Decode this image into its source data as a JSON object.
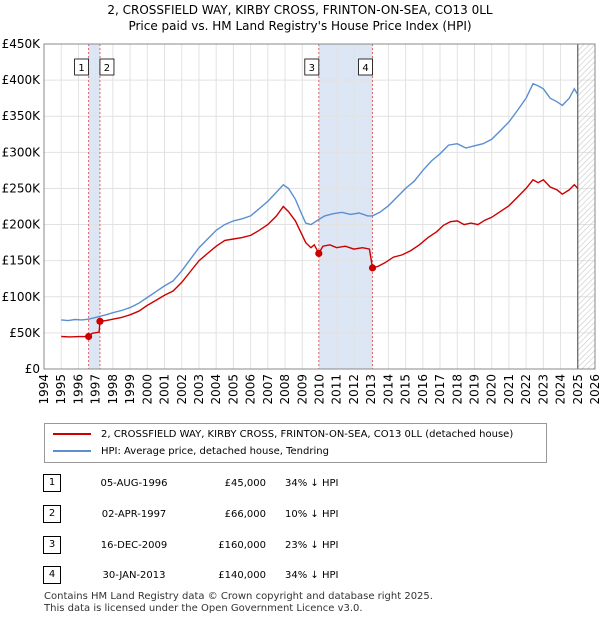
{
  "header": {
    "line1": "2, CROSSFIELD WAY, KIRBY CROSS, FRINTON-ON-SEA, CO13 0LL",
    "line2": "Price paid vs. HM Land Registry's House Price Index (HPI)"
  },
  "chart_data": {
    "type": "line",
    "title": "2, CROSSFIELD WAY, KIRBY CROSS, FRINTON-ON-SEA, CO13 0LL - Price paid vs. HM Land Registry's House Price Index (HPI)",
    "xlim": [
      1994,
      2026
    ],
    "ylim": [
      0,
      450000
    ],
    "x_ticks": [
      "1994",
      "1995",
      "1996",
      "1997",
      "1998",
      "1999",
      "2000",
      "2001",
      "2002",
      "2003",
      "2004",
      "2005",
      "2006",
      "2007",
      "2008",
      "2009",
      "2010",
      "2011",
      "2012",
      "2013",
      "2014",
      "2015",
      "2016",
      "2017",
      "2018",
      "2019",
      "2020",
      "2021",
      "2022",
      "2023",
      "2024",
      "2025",
      "2026"
    ],
    "y_ticks": [
      {
        "value": 0,
        "label": "£0"
      },
      {
        "value": 50000,
        "label": "£50K"
      },
      {
        "value": 100000,
        "label": "£100K"
      },
      {
        "value": 150000,
        "label": "£150K"
      },
      {
        "value": 200000,
        "label": "£200K"
      },
      {
        "value": 250000,
        "label": "£250K"
      },
      {
        "value": 300000,
        "label": "£300K"
      },
      {
        "value": 350000,
        "label": "£350K"
      },
      {
        "value": 400000,
        "label": "£400K"
      },
      {
        "value": 450000,
        "label": "£450K"
      }
    ],
    "data_end_year": 2025.0,
    "series": [
      {
        "name": "2, CROSSFIELD WAY, KIRBY CROSS, FRINTON-ON-SEA, CO13 0LL (detached house)",
        "color": "#cc0000",
        "points": [
          [
            1995.0,
            45000
          ],
          [
            1995.5,
            44500
          ],
          [
            1996.0,
            44800
          ],
          [
            1996.59,
            45000
          ],
          [
            1996.8,
            49500
          ],
          [
            1997.2,
            51000
          ],
          [
            1997.25,
            66000
          ],
          [
            1997.6,
            67000
          ],
          [
            1998.0,
            69000
          ],
          [
            1998.5,
            71500
          ],
          [
            1999.0,
            75000
          ],
          [
            1999.5,
            80000
          ],
          [
            2000.0,
            88000
          ],
          [
            2000.5,
            95000
          ],
          [
            2001.0,
            102000
          ],
          [
            2001.5,
            108000
          ],
          [
            2002.0,
            120000
          ],
          [
            2002.5,
            135000
          ],
          [
            2003.0,
            150000
          ],
          [
            2003.5,
            160000
          ],
          [
            2004.0,
            170000
          ],
          [
            2004.5,
            178000
          ],
          [
            2005.0,
            180000
          ],
          [
            2005.5,
            182000
          ],
          [
            2006.0,
            185000
          ],
          [
            2006.5,
            192000
          ],
          [
            2007.0,
            200000
          ],
          [
            2007.5,
            212000
          ],
          [
            2007.9,
            225000
          ],
          [
            2008.2,
            218000
          ],
          [
            2008.6,
            205000
          ],
          [
            2008.9,
            190000
          ],
          [
            2009.2,
            175000
          ],
          [
            2009.5,
            168000
          ],
          [
            2009.7,
            172000
          ],
          [
            2009.96,
            160000
          ],
          [
            2010.2,
            170000
          ],
          [
            2010.6,
            172000
          ],
          [
            2011.0,
            168000
          ],
          [
            2011.5,
            170000
          ],
          [
            2012.0,
            166000
          ],
          [
            2012.5,
            168000
          ],
          [
            2012.9,
            166000
          ],
          [
            2013.08,
            140000
          ],
          [
            2013.4,
            142000
          ],
          [
            2013.8,
            147000
          ],
          [
            2014.3,
            155000
          ],
          [
            2014.8,
            158000
          ],
          [
            2015.3,
            164000
          ],
          [
            2015.8,
            172000
          ],
          [
            2016.3,
            182000
          ],
          [
            2016.8,
            190000
          ],
          [
            2017.2,
            199000
          ],
          [
            2017.6,
            204000
          ],
          [
            2018.0,
            205000
          ],
          [
            2018.4,
            200000
          ],
          [
            2018.8,
            202000
          ],
          [
            2019.2,
            200000
          ],
          [
            2019.6,
            206000
          ],
          [
            2020.0,
            210000
          ],
          [
            2020.5,
            218000
          ],
          [
            2021.0,
            226000
          ],
          [
            2021.5,
            238000
          ],
          [
            2022.0,
            250000
          ],
          [
            2022.4,
            262000
          ],
          [
            2022.7,
            258000
          ],
          [
            2023.0,
            262000
          ],
          [
            2023.4,
            252000
          ],
          [
            2023.8,
            248000
          ],
          [
            2024.1,
            242000
          ],
          [
            2024.5,
            248000
          ],
          [
            2024.8,
            255000
          ],
          [
            2025.0,
            250000
          ]
        ]
      },
      {
        "name": "HPI: Average price, detached house, Tendring",
        "color": "#5b8fd0",
        "points": [
          [
            1995.0,
            68000
          ],
          [
            1995.4,
            67000
          ],
          [
            1995.8,
            68500
          ],
          [
            1996.2,
            68000
          ],
          [
            1996.59,
            69000
          ],
          [
            1997.0,
            71500
          ],
          [
            1997.25,
            73000
          ],
          [
            1997.6,
            75000
          ],
          [
            1998.0,
            78000
          ],
          [
            1998.5,
            81000
          ],
          [
            1999.0,
            85000
          ],
          [
            1999.5,
            91000
          ],
          [
            2000.0,
            99000
          ],
          [
            2000.5,
            107000
          ],
          [
            2001.0,
            115000
          ],
          [
            2001.5,
            122000
          ],
          [
            2002.0,
            136000
          ],
          [
            2002.5,
            152000
          ],
          [
            2003.0,
            168000
          ],
          [
            2003.5,
            180000
          ],
          [
            2004.0,
            192000
          ],
          [
            2004.5,
            200000
          ],
          [
            2005.0,
            205000
          ],
          [
            2005.5,
            208000
          ],
          [
            2006.0,
            212000
          ],
          [
            2006.5,
            222000
          ],
          [
            2007.0,
            232000
          ],
          [
            2007.5,
            245000
          ],
          [
            2007.9,
            255000
          ],
          [
            2008.2,
            250000
          ],
          [
            2008.6,
            235000
          ],
          [
            2008.9,
            218000
          ],
          [
            2009.2,
            202000
          ],
          [
            2009.5,
            200000
          ],
          [
            2009.96,
            207000
          ],
          [
            2010.3,
            212000
          ],
          [
            2010.8,
            215000
          ],
          [
            2011.3,
            217000
          ],
          [
            2011.8,
            214000
          ],
          [
            2012.3,
            216000
          ],
          [
            2012.8,
            212000
          ],
          [
            2013.08,
            212000
          ],
          [
            2013.5,
            217000
          ],
          [
            2014.0,
            226000
          ],
          [
            2014.5,
            238000
          ],
          [
            2015.0,
            250000
          ],
          [
            2015.5,
            260000
          ],
          [
            2016.0,
            275000
          ],
          [
            2016.5,
            288000
          ],
          [
            2017.0,
            298000
          ],
          [
            2017.5,
            310000
          ],
          [
            2018.0,
            312000
          ],
          [
            2018.5,
            306000
          ],
          [
            2019.0,
            309000
          ],
          [
            2019.5,
            312000
          ],
          [
            2020.0,
            318000
          ],
          [
            2020.5,
            330000
          ],
          [
            2021.0,
            342000
          ],
          [
            2021.5,
            358000
          ],
          [
            2022.0,
            375000
          ],
          [
            2022.4,
            395000
          ],
          [
            2022.7,
            392000
          ],
          [
            2023.0,
            388000
          ],
          [
            2023.4,
            375000
          ],
          [
            2023.8,
            370000
          ],
          [
            2024.1,
            365000
          ],
          [
            2024.5,
            375000
          ],
          [
            2024.8,
            388000
          ],
          [
            2025.0,
            380000
          ]
        ]
      }
    ],
    "sales": [
      {
        "id": "1",
        "x": 1996.59,
        "price": 45000
      },
      {
        "id": "2",
        "x": 1997.25,
        "price": 66000
      },
      {
        "id": "3",
        "x": 2009.96,
        "price": 160000
      },
      {
        "id": "4",
        "x": 2013.08,
        "price": 140000
      }
    ]
  },
  "legend": {
    "property_label": "2, CROSSFIELD WAY, KIRBY CROSS, FRINTON-ON-SEA, CO13 0LL (detached house)",
    "hpi_label": "HPI: Average price, detached house, Tendring",
    "property_color": "#cc0000",
    "hpi_color": "#5b8fd0"
  },
  "sales_table": [
    {
      "id": "1",
      "date": "05-AUG-1996",
      "price": "£45,000",
      "delta": "34% ↓ HPI"
    },
    {
      "id": "2",
      "date": "02-APR-1997",
      "price": "£66,000",
      "delta": "10% ↓ HPI"
    },
    {
      "id": "3",
      "date": "16-DEC-2009",
      "price": "£160,000",
      "delta": "23% ↓ HPI"
    },
    {
      "id": "4",
      "date": "30-JAN-2013",
      "price": "£140,000",
      "delta": "34% ↓ HPI"
    }
  ],
  "footer": {
    "line1": "Contains HM Land Registry data © Crown copyright and database right 2025.",
    "line2": "This data is licensed under the Open Government Licence v3.0."
  }
}
